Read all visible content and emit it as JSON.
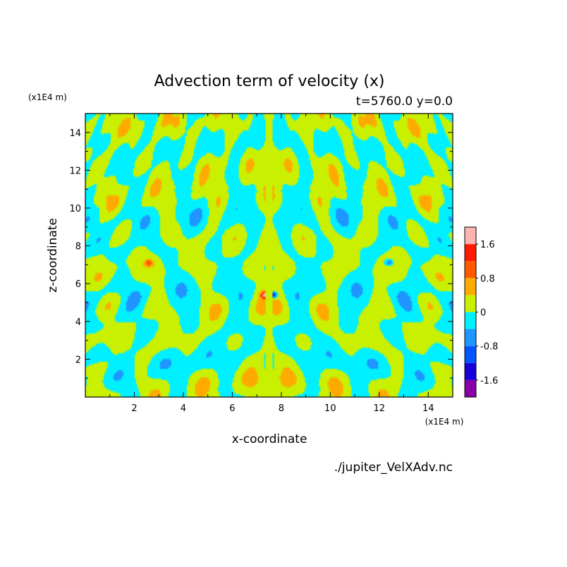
{
  "chart_data": {
    "type": "heatmap",
    "title": "Advection term of velocity (x)",
    "subtitle": "t=5760.0 y=0.0",
    "xlabel": "x-coordinate",
    "ylabel": "z-coordinate",
    "x_unit": "(x1E4 m)",
    "y_unit": "(x1E4 m)",
    "xlim": [
      0,
      15
    ],
    "ylim": [
      0,
      15
    ],
    "xticks": [
      "2",
      "4",
      "6",
      "8",
      "10",
      "12",
      "14"
    ],
    "yticks": [
      "2",
      "4",
      "6",
      "8",
      "10",
      "12",
      "14"
    ],
    "colorbar": {
      "levels": [
        -2.0,
        -1.6,
        -1.2,
        -0.8,
        -0.4,
        0,
        0.4,
        0.8,
        1.2,
        1.6,
        2.0
      ],
      "colors": [
        "#8a00a8",
        "#1a00d8",
        "#0055ff",
        "#1f96ff",
        "#00f0ff",
        "#c8f000",
        "#ffaa00",
        "#ff5a00",
        "#ff1a00",
        "#ffb4b4"
      ],
      "tick_labels": [
        "1.6",
        "0.8",
        "0",
        "-0.8",
        "-1.6"
      ],
      "tick_values": [
        1.6,
        0.8,
        0,
        -0.8,
        -1.6
      ]
    },
    "field_description": "Mirror-symmetric contour field about x=7.5; mostly near-zero values alternating between slightly positive (yellow-green) and slightly negative (cyan), with a strong dipole near x=7.5, z=5.4 (positive ~1.6 left, negative ~-1.6 right).",
    "features": [
      {
        "x": 7.35,
        "z": 5.4,
        "value": 1.6
      },
      {
        "x": 7.65,
        "z": 5.4,
        "value": -1.6
      },
      {
        "x": 2.6,
        "z": 7.1,
        "value": 0.8
      },
      {
        "x": 12.4,
        "z": 7.1,
        "value": -0.8
      }
    ]
  },
  "footer": {
    "source": "./jupiter_VelXAdv.nc"
  }
}
